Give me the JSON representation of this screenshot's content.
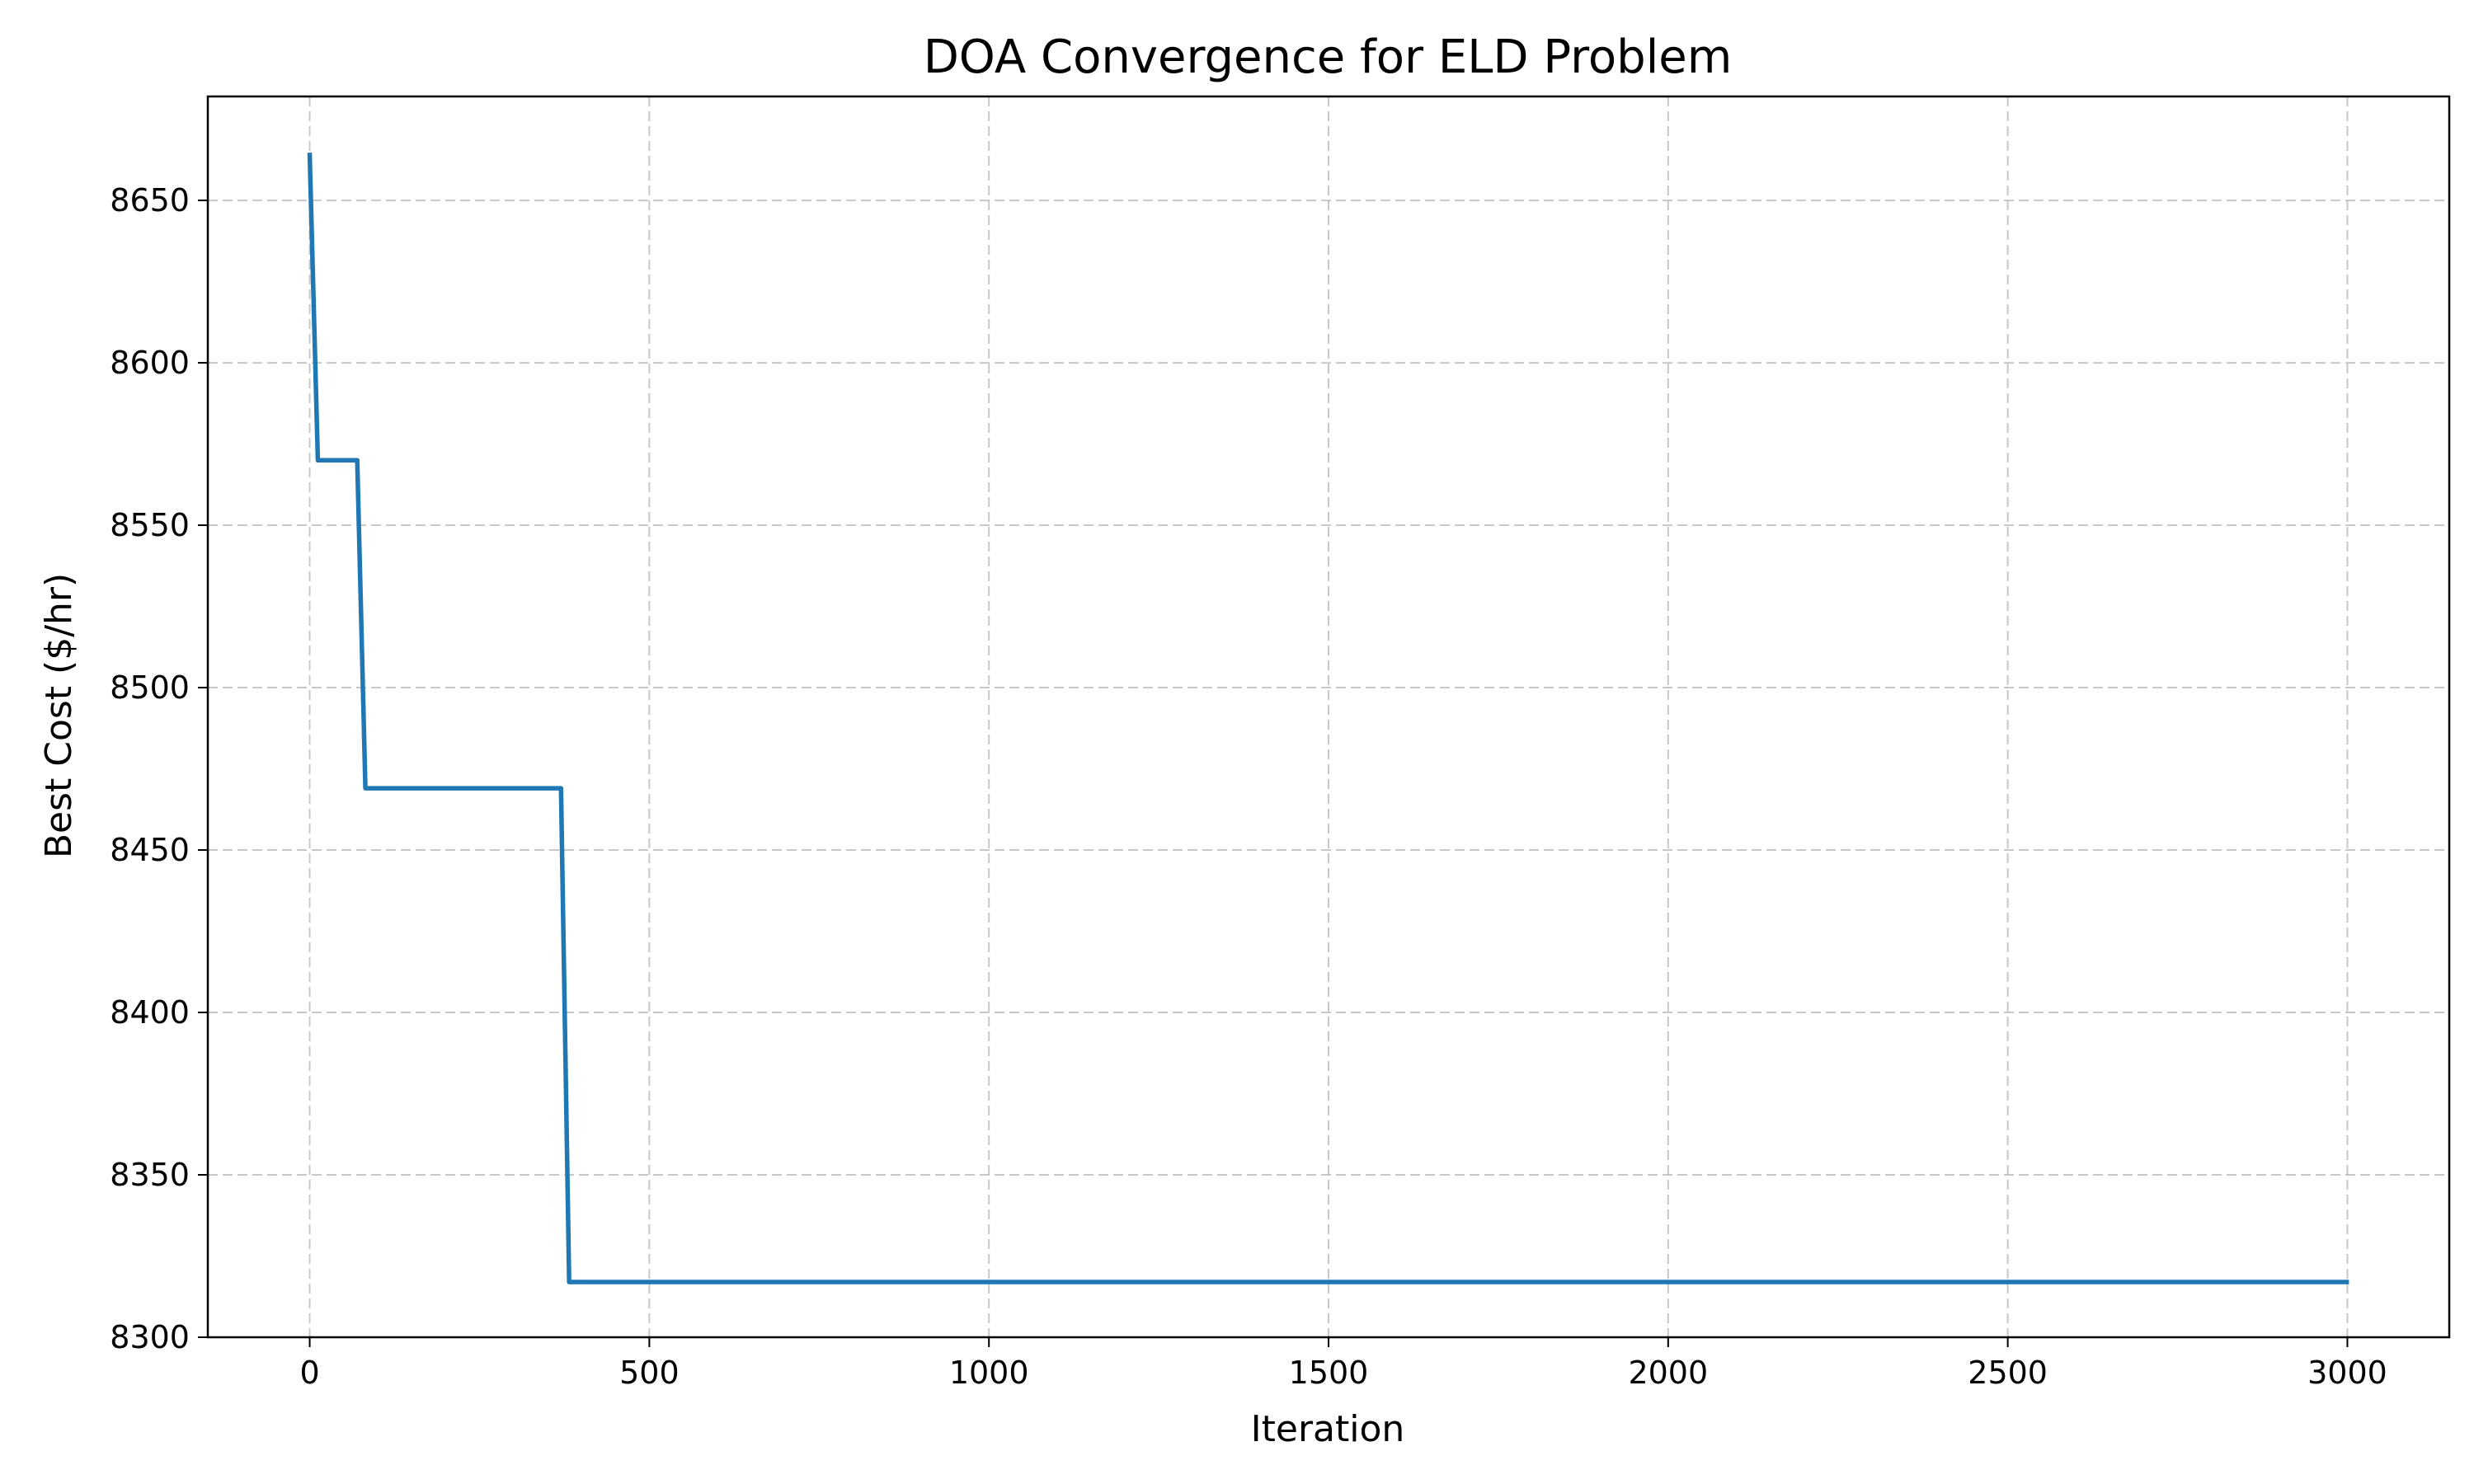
{
  "chart_data": {
    "type": "line",
    "title": "DOA Convergence for ELD Problem",
    "xlabel": "Iteration",
    "ylabel": "Best Cost ($/hr)",
    "xlim": [
      -150,
      3150
    ],
    "ylim": [
      8300,
      8682
    ],
    "xticks": [
      0,
      500,
      1000,
      1500,
      2000,
      2500,
      3000
    ],
    "yticks": [
      8300,
      8350,
      8400,
      8450,
      8500,
      8550,
      8600,
      8650
    ],
    "grid": true,
    "legend": "none",
    "series": [
      {
        "color": "#1f77b4",
        "x": [
          0,
          12,
          70,
          82,
          370,
          382,
          2999
        ],
        "y": [
          8664,
          8570,
          8570,
          8469,
          8469,
          8317,
          8317
        ]
      }
    ]
  }
}
